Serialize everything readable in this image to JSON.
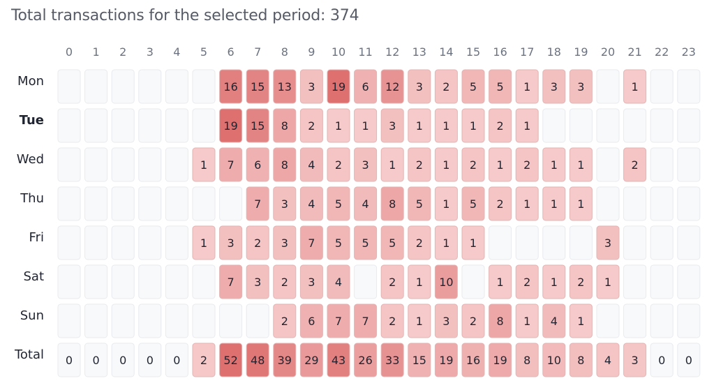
{
  "title": "Total transactions for the selected period: 374",
  "colors": {
    "empty": "#f8f9fb",
    "empty_border": "#e8eaee",
    "cell_light": "#f6caca",
    "cell_dark": "#de7070",
    "cell_border": "#e3b4b4",
    "text": "#1f2430",
    "label": "#6b7280"
  },
  "chart_data": {
    "type": "heatmap",
    "title": "Total transactions for the selected period: 374",
    "x": [
      "0",
      "1",
      "2",
      "3",
      "4",
      "5",
      "6",
      "7",
      "8",
      "9",
      "10",
      "11",
      "12",
      "13",
      "14",
      "15",
      "16",
      "17",
      "18",
      "19",
      "20",
      "21",
      "22",
      "23"
    ],
    "y": [
      "Mon",
      "Tue",
      "Wed",
      "Thu",
      "Fri",
      "Sat",
      "Sun"
    ],
    "highlighted_row": "Tue",
    "values": [
      [
        null,
        null,
        null,
        null,
        null,
        null,
        16,
        15,
        13,
        3,
        19,
        6,
        12,
        3,
        2,
        5,
        5,
        1,
        3,
        3,
        null,
        1,
        null,
        null
      ],
      [
        null,
        null,
        null,
        null,
        null,
        null,
        19,
        15,
        8,
        2,
        1,
        1,
        3,
        1,
        1,
        1,
        2,
        1,
        null,
        null,
        null,
        null,
        null,
        null
      ],
      [
        null,
        null,
        null,
        null,
        null,
        1,
        7,
        6,
        8,
        4,
        2,
        3,
        1,
        2,
        1,
        2,
        1,
        2,
        1,
        1,
        null,
        2,
        null,
        null
      ],
      [
        null,
        null,
        null,
        null,
        null,
        null,
        null,
        7,
        3,
        4,
        5,
        4,
        8,
        5,
        1,
        5,
        2,
        1,
        1,
        1,
        null,
        null,
        null,
        null
      ],
      [
        null,
        null,
        null,
        null,
        null,
        1,
        3,
        2,
        3,
        7,
        5,
        5,
        5,
        2,
        1,
        1,
        null,
        null,
        null,
        null,
        3,
        null,
        null,
        null
      ],
      [
        null,
        null,
        null,
        null,
        null,
        null,
        7,
        3,
        2,
        3,
        4,
        null,
        2,
        1,
        10,
        null,
        1,
        2,
        1,
        2,
        1,
        null,
        null,
        null
      ],
      [
        null,
        null,
        null,
        null,
        null,
        null,
        null,
        null,
        2,
        6,
        7,
        7,
        2,
        1,
        3,
        2,
        8,
        1,
        4,
        1,
        null,
        null,
        null,
        null
      ]
    ],
    "total_label": "Total",
    "totals": [
      0,
      0,
      0,
      0,
      0,
      2,
      52,
      48,
      39,
      29,
      43,
      26,
      33,
      15,
      19,
      16,
      19,
      8,
      10,
      8,
      4,
      3,
      0,
      0
    ]
  }
}
